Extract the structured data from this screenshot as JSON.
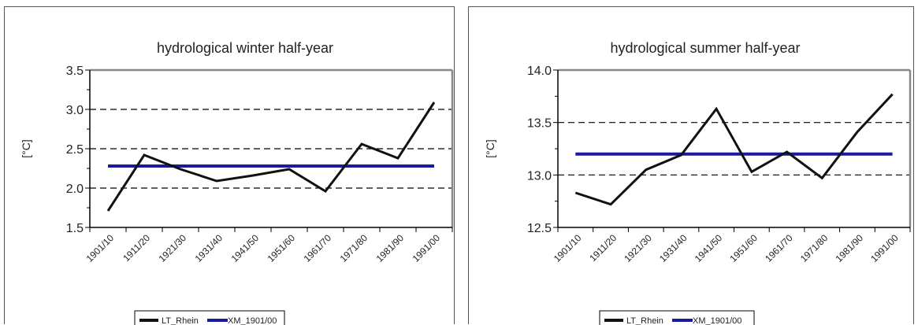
{
  "chart_data": [
    {
      "type": "line",
      "title": "hydrological winter half-year",
      "xlabel": "",
      "ylabel": "[°C]",
      "categories": [
        "1901/10",
        "1911/20",
        "1921/30",
        "1931/40",
        "1941/50",
        "1951/60",
        "1961/70",
        "1971/80",
        "1981/90",
        "1991/00"
      ],
      "ylim": [
        1.5,
        3.5
      ],
      "yticks": [
        "1.5",
        "2.0",
        "2.5",
        "3.0",
        "3.5"
      ],
      "grid": "dashed horizontal at major ticks",
      "legend_position": "bottom",
      "series": [
        {
          "name": "LT_Rhein",
          "color": "#111111",
          "values": [
            1.71,
            2.42,
            2.24,
            2.09,
            2.16,
            2.24,
            1.96,
            2.56,
            2.38,
            3.09
          ]
        },
        {
          "name": "XM_1901/00",
          "color": "#1a1a9e",
          "values": [
            2.28,
            2.28,
            2.28,
            2.28,
            2.28,
            2.28,
            2.28,
            2.28,
            2.28,
            2.28
          ]
        }
      ]
    },
    {
      "type": "line",
      "title": "hydrological summer half-year",
      "xlabel": "",
      "ylabel": "[°C]",
      "categories": [
        "1901/10",
        "1911/20",
        "1921/30",
        "1931/40",
        "1941/50",
        "1951/60",
        "1961/70",
        "1971/80",
        "1981/90",
        "1991/00"
      ],
      "ylim": [
        12.5,
        14.0
      ],
      "yticks": [
        "12.5",
        "13.0",
        "13.5",
        "14.0"
      ],
      "grid": "dashed horizontal at major ticks",
      "legend_position": "bottom",
      "series": [
        {
          "name": "LT_Rhein",
          "color": "#111111",
          "values": [
            12.83,
            12.72,
            13.05,
            13.19,
            13.63,
            13.03,
            13.22,
            12.97,
            13.41,
            13.77
          ]
        },
        {
          "name": "XM_1901/00",
          "color": "#1a1a9e",
          "values": [
            13.2,
            13.2,
            13.2,
            13.2,
            13.2,
            13.2,
            13.2,
            13.2,
            13.2,
            13.2
          ]
        }
      ]
    }
  ]
}
